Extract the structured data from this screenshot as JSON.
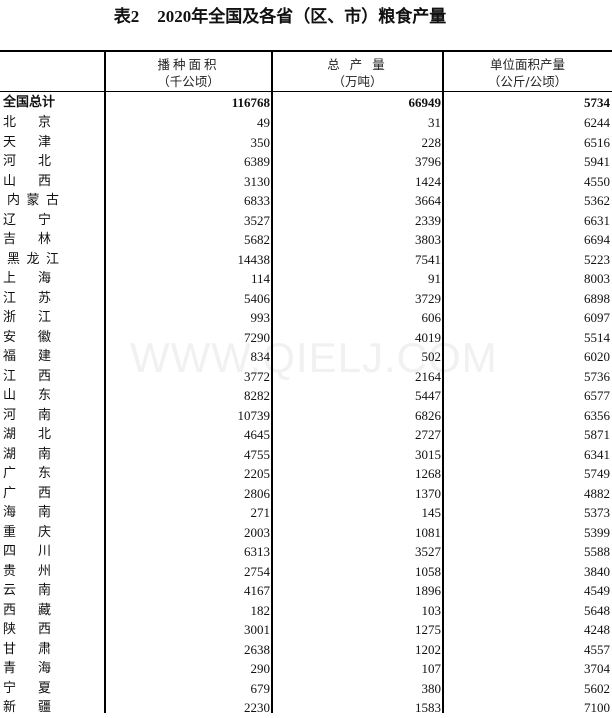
{
  "title": {
    "label": "表2",
    "text": "2020年全国及各省（区、市）粮食产量"
  },
  "watermark": "WWW.QIELJ.COM",
  "columns": [
    {
      "name": "播种面积",
      "unit": "（千公顷）"
    },
    {
      "name": "总 产 量",
      "unit": "（万吨）"
    },
    {
      "name": "单位面积产量",
      "unit": "（公斤/公顷）"
    }
  ],
  "total": {
    "region": "全国总计",
    "area": "116768",
    "output": "66949",
    "yield": "5734"
  },
  "rows": [
    {
      "region": "北京",
      "area": "49",
      "output": "31",
      "yield": "6244"
    },
    {
      "region": "天津",
      "area": "350",
      "output": "228",
      "yield": "6516"
    },
    {
      "region": "河北",
      "area": "6389",
      "output": "3796",
      "yield": "5941"
    },
    {
      "region": "山西",
      "area": "3130",
      "output": "1424",
      "yield": "4550"
    },
    {
      "region": "内蒙古",
      "area": "6833",
      "output": "3664",
      "yield": "5362"
    },
    {
      "region": "辽宁",
      "area": "3527",
      "output": "2339",
      "yield": "6631"
    },
    {
      "region": "吉林",
      "area": "5682",
      "output": "3803",
      "yield": "6694"
    },
    {
      "region": "黑龙江",
      "area": "14438",
      "output": "7541",
      "yield": "5223"
    },
    {
      "region": "上海",
      "area": "114",
      "output": "91",
      "yield": "8003"
    },
    {
      "region": "江苏",
      "area": "5406",
      "output": "3729",
      "yield": "6898"
    },
    {
      "region": "浙江",
      "area": "993",
      "output": "606",
      "yield": "6097"
    },
    {
      "region": "安徽",
      "area": "7290",
      "output": "4019",
      "yield": "5514"
    },
    {
      "region": "福建",
      "area": "834",
      "output": "502",
      "yield": "6020"
    },
    {
      "region": "江西",
      "area": "3772",
      "output": "2164",
      "yield": "5736"
    },
    {
      "region": "山东",
      "area": "8282",
      "output": "5447",
      "yield": "6577"
    },
    {
      "region": "河南",
      "area": "10739",
      "output": "6826",
      "yield": "6356"
    },
    {
      "region": "湖北",
      "area": "4645",
      "output": "2727",
      "yield": "5871"
    },
    {
      "region": "湖南",
      "area": "4755",
      "output": "3015",
      "yield": "6341"
    },
    {
      "region": "广东",
      "area": "2205",
      "output": "1268",
      "yield": "5749"
    },
    {
      "region": "广西",
      "area": "2806",
      "output": "1370",
      "yield": "4882"
    },
    {
      "region": "海南",
      "area": "271",
      "output": "145",
      "yield": "5373"
    },
    {
      "region": "重庆",
      "area": "2003",
      "output": "1081",
      "yield": "5399"
    },
    {
      "region": "四川",
      "area": "6313",
      "output": "3527",
      "yield": "5588"
    },
    {
      "region": "贵州",
      "area": "2754",
      "output": "1058",
      "yield": "3840"
    },
    {
      "region": "云南",
      "area": "4167",
      "output": "1896",
      "yield": "4549"
    },
    {
      "region": "西藏",
      "area": "182",
      "output": "103",
      "yield": "5648"
    },
    {
      "region": "陕西",
      "area": "3001",
      "output": "1275",
      "yield": "4248"
    },
    {
      "region": "甘肃",
      "area": "2638",
      "output": "1202",
      "yield": "4557"
    },
    {
      "region": "青海",
      "area": "290",
      "output": "107",
      "yield": "3704"
    },
    {
      "region": "宁夏",
      "area": "679",
      "output": "380",
      "yield": "5602"
    },
    {
      "region": "新疆",
      "area": "2230",
      "output": "1583",
      "yield": "7100"
    }
  ]
}
